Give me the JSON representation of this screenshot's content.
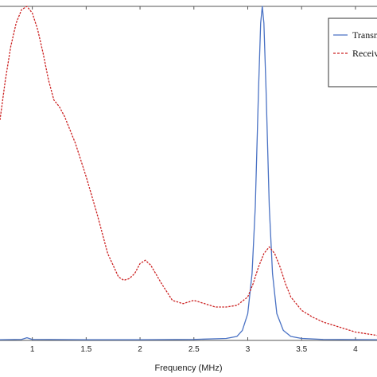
{
  "chart_data": {
    "type": "line",
    "title": "",
    "xlabel": "Frequency (MHz)",
    "ylabel": "",
    "xlim": [
      0.7,
      4.2
    ],
    "ylim": [
      0,
      1
    ],
    "x_ticks": [
      "1",
      "1.5",
      "2",
      "2.5",
      "3",
      "3.5",
      "4"
    ],
    "grid": false,
    "legend_position": "top-right",
    "series": [
      {
        "name": "Transm",
        "color": "#4a72c4",
        "style": "solid",
        "points": [
          [
            0.7,
            0.002
          ],
          [
            0.9,
            0.003
          ],
          [
            0.95,
            0.008
          ],
          [
            1.0,
            0.003
          ],
          [
            1.5,
            0.002
          ],
          [
            2.0,
            0.002
          ],
          [
            2.5,
            0.003
          ],
          [
            2.8,
            0.006
          ],
          [
            2.9,
            0.012
          ],
          [
            2.95,
            0.03
          ],
          [
            3.0,
            0.08
          ],
          [
            3.04,
            0.2
          ],
          [
            3.07,
            0.4
          ],
          [
            3.1,
            0.75
          ],
          [
            3.12,
            0.95
          ],
          [
            3.135,
            1.0
          ],
          [
            3.15,
            0.95
          ],
          [
            3.17,
            0.75
          ],
          [
            3.2,
            0.4
          ],
          [
            3.23,
            0.2
          ],
          [
            3.27,
            0.08
          ],
          [
            3.33,
            0.03
          ],
          [
            3.4,
            0.012
          ],
          [
            3.5,
            0.006
          ],
          [
            3.7,
            0.003
          ],
          [
            4.2,
            0.002
          ]
        ]
      },
      {
        "name": "Receiv",
        "color": "#cc2222",
        "style": "dashed",
        "points": [
          [
            0.7,
            0.66
          ],
          [
            0.75,
            0.78
          ],
          [
            0.8,
            0.88
          ],
          [
            0.85,
            0.95
          ],
          [
            0.9,
            0.99
          ],
          [
            0.95,
            1.0
          ],
          [
            1.0,
            0.98
          ],
          [
            1.05,
            0.93
          ],
          [
            1.1,
            0.86
          ],
          [
            1.15,
            0.78
          ],
          [
            1.2,
            0.72
          ],
          [
            1.25,
            0.7
          ],
          [
            1.3,
            0.67
          ],
          [
            1.4,
            0.59
          ],
          [
            1.5,
            0.49
          ],
          [
            1.6,
            0.38
          ],
          [
            1.7,
            0.26
          ],
          [
            1.8,
            0.19
          ],
          [
            1.85,
            0.18
          ],
          [
            1.9,
            0.185
          ],
          [
            1.95,
            0.2
          ],
          [
            2.0,
            0.23
          ],
          [
            2.05,
            0.24
          ],
          [
            2.1,
            0.225
          ],
          [
            2.2,
            0.17
          ],
          [
            2.3,
            0.12
          ],
          [
            2.4,
            0.11
          ],
          [
            2.5,
            0.12
          ],
          [
            2.6,
            0.11
          ],
          [
            2.7,
            0.1
          ],
          [
            2.8,
            0.1
          ],
          [
            2.9,
            0.105
          ],
          [
            3.0,
            0.13
          ],
          [
            3.05,
            0.17
          ],
          [
            3.1,
            0.22
          ],
          [
            3.15,
            0.26
          ],
          [
            3.2,
            0.28
          ],
          [
            3.25,
            0.26
          ],
          [
            3.3,
            0.22
          ],
          [
            3.35,
            0.17
          ],
          [
            3.4,
            0.13
          ],
          [
            3.5,
            0.09
          ],
          [
            3.6,
            0.07
          ],
          [
            3.7,
            0.055
          ],
          [
            3.8,
            0.045
          ],
          [
            3.9,
            0.035
          ],
          [
            4.0,
            0.025
          ],
          [
            4.1,
            0.02
          ],
          [
            4.2,
            0.015
          ]
        ]
      }
    ]
  }
}
